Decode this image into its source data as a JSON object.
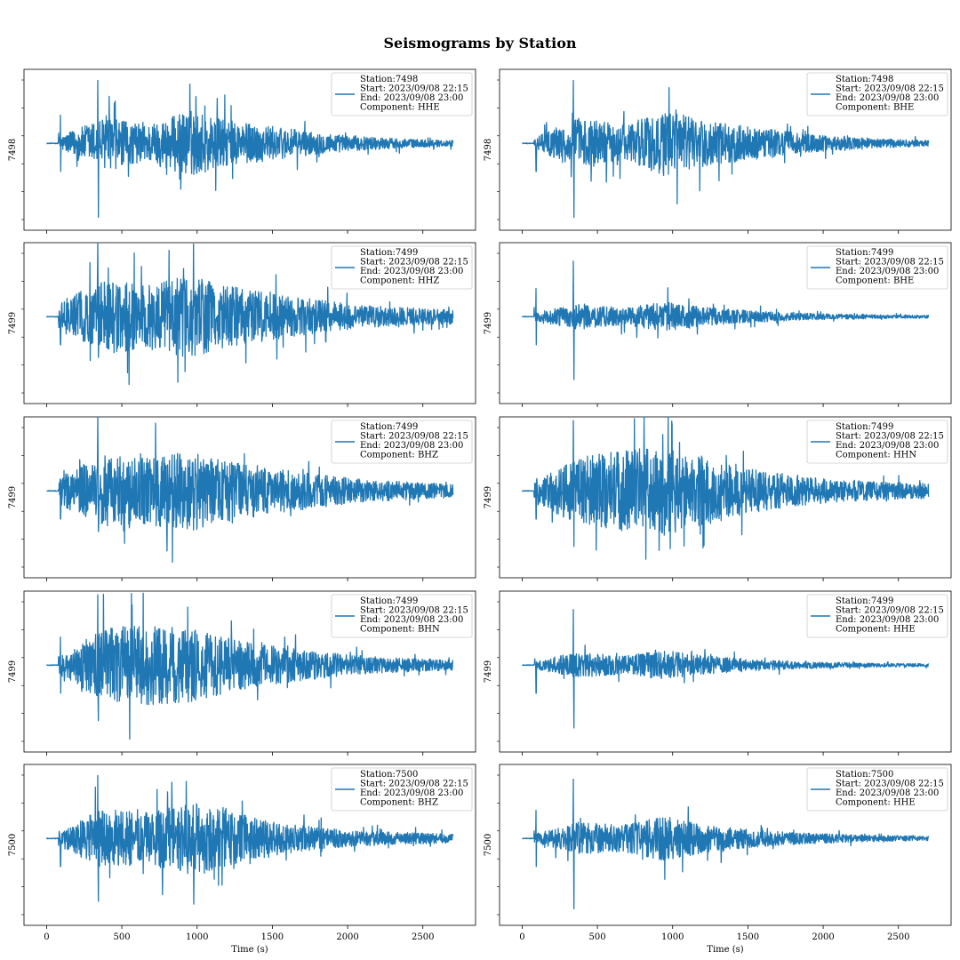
{
  "figure_title": "Seismograms by Station",
  "colors": {
    "line": "#1f77b4",
    "axes": "#000000",
    "legend_border": "#cccccc",
    "background": "#ffffff"
  },
  "chart_data": [
    {
      "type": "line",
      "ylabel": "7498",
      "xlabel": "",
      "xlim": [
        -150,
        2850
      ],
      "xticks": [
        0,
        500,
        1000,
        1500,
        2000,
        2500
      ],
      "show_xtick_labels": false,
      "legend_placement": "top-right",
      "legend": [
        "Station:7498",
        "Start: 2023/09/08 22:15",
        "End: 2023/09/08 23:00",
        "Component: HHE"
      ],
      "series": [
        {
          "name": "Station:7498 HHE",
          "onset": 80,
          "p_arrival": 93,
          "s_arrival": 340,
          "pre_level": 0.0,
          "envelope": [
            0.08,
            0.35,
            0.25,
            0.45,
            0.3,
            0.22,
            0.14,
            0.09,
            0.06,
            0.04
          ],
          "spike_up": 0.85,
          "spike_down": 1.0,
          "tail_end": 2700
        }
      ]
    },
    {
      "type": "line",
      "ylabel": "7498",
      "xlabel": "",
      "xlim": [
        -150,
        2850
      ],
      "xticks": [
        0,
        500,
        1000,
        1500,
        2000,
        2500
      ],
      "show_xtick_labels": false,
      "legend_placement": "top-right",
      "legend": [
        "Station:7498",
        "Start: 2023/09/08 22:15",
        "End: 2023/09/08 23:00",
        "Component: BHE"
      ],
      "series": [
        {
          "name": "Station:7498 BHE",
          "onset": 80,
          "p_arrival": 93,
          "s_arrival": 340,
          "pre_level": 0.0,
          "envelope": [
            0.08,
            0.35,
            0.25,
            0.45,
            0.3,
            0.22,
            0.14,
            0.09,
            0.06,
            0.04
          ],
          "spike_up": 0.85,
          "spike_down": 1.0,
          "tail_end": 2700
        }
      ]
    },
    {
      "type": "line",
      "ylabel": "7499",
      "xlabel": "",
      "xlim": [
        -150,
        2850
      ],
      "xticks": [
        0,
        500,
        1000,
        1500,
        2000,
        2500
      ],
      "show_xtick_labels": false,
      "legend_placement": "top-right",
      "legend": [
        "Station:7499",
        "Start: 2023/09/08 22:15",
        "End: 2023/09/08 23:00",
        "Component: HHZ"
      ],
      "series": [
        {
          "name": "Station:7499 HHZ",
          "onset": 80,
          "p_arrival": 93,
          "s_arrival": 340,
          "pre_level": 0.0,
          "envelope": [
            0.18,
            0.5,
            0.45,
            0.55,
            0.4,
            0.3,
            0.22,
            0.15,
            0.12,
            0.09
          ],
          "spike_up": 1.0,
          "spike_down": 0.55,
          "tail_end": 2700
        }
      ]
    },
    {
      "type": "line",
      "ylabel": "7499",
      "xlabel": "",
      "xlim": [
        -150,
        2850
      ],
      "xticks": [
        0,
        500,
        1000,
        1500,
        2000,
        2500
      ],
      "show_xtick_labels": false,
      "legend_placement": "top-right",
      "legend": [
        "Station:7499",
        "Start: 2023/09/08 22:15",
        "End: 2023/09/08 23:00",
        "Component: BHE"
      ],
      "series": [
        {
          "name": "Station:7499 BHE",
          "onset": 80,
          "p_arrival": 93,
          "s_arrival": 340,
          "pre_level": 0.0,
          "envelope": [
            0.05,
            0.18,
            0.12,
            0.2,
            0.12,
            0.08,
            0.05,
            0.035,
            0.025,
            0.02
          ],
          "spike_up": 0.75,
          "spike_down": 0.85,
          "tail_end": 2700
        }
      ]
    },
    {
      "type": "line",
      "ylabel": "7499",
      "xlabel": "",
      "xlim": [
        -150,
        2850
      ],
      "xticks": [
        0,
        500,
        1000,
        1500,
        2000,
        2500
      ],
      "show_xtick_labels": false,
      "legend_placement": "top-right",
      "legend": [
        "Station:7499",
        "Start: 2023/09/08 22:15",
        "End: 2023/09/08 23:00",
        "Component: BHZ"
      ],
      "series": [
        {
          "name": "Station:7499 BHZ",
          "onset": 80,
          "p_arrival": 93,
          "s_arrival": 340,
          "pre_level": 0.0,
          "envelope": [
            0.18,
            0.5,
            0.45,
            0.55,
            0.4,
            0.3,
            0.22,
            0.15,
            0.12,
            0.09
          ],
          "spike_up": 1.0,
          "spike_down": 0.55,
          "tail_end": 2700
        }
      ]
    },
    {
      "type": "line",
      "ylabel": "7499",
      "xlabel": "",
      "xlim": [
        -150,
        2850
      ],
      "xticks": [
        0,
        500,
        1000,
        1500,
        2000,
        2500
      ],
      "show_xtick_labels": false,
      "legend_placement": "top-right",
      "legend": [
        "Station:7499",
        "Start: 2023/09/08 22:15",
        "End: 2023/09/08 23:00",
        "Component: HHN"
      ],
      "series": [
        {
          "name": "Station:7499 HHN",
          "onset": 80,
          "p_arrival": 93,
          "s_arrival": 340,
          "pre_level": 0.0,
          "envelope": [
            0.15,
            0.45,
            0.55,
            0.6,
            0.45,
            0.3,
            0.2,
            0.15,
            0.12,
            0.1
          ],
          "spike_up": 0.95,
          "spike_down": 0.75,
          "tail_end": 2700
        }
      ]
    },
    {
      "type": "line",
      "ylabel": "7499",
      "xlabel": "",
      "xlim": [
        -150,
        2850
      ],
      "xticks": [
        0,
        500,
        1000,
        1500,
        2000,
        2500
      ],
      "show_xtick_labels": false,
      "legend_placement": "top-right",
      "legend": [
        "Station:7499",
        "Start: 2023/09/08 22:15",
        "End: 2023/09/08 23:00",
        "Component: BHN"
      ],
      "series": [
        {
          "name": "Station:7499 BHN",
          "onset": 80,
          "p_arrival": 93,
          "s_arrival": 340,
          "pre_level": 0.0,
          "envelope": [
            0.12,
            0.5,
            0.55,
            0.5,
            0.35,
            0.25,
            0.18,
            0.12,
            0.09,
            0.07
          ],
          "spike_up": 0.95,
          "spike_down": 0.75,
          "tail_end": 2700
        }
      ]
    },
    {
      "type": "line",
      "ylabel": "7499",
      "xlabel": "",
      "xlim": [
        -150,
        2850
      ],
      "xticks": [
        0,
        500,
        1000,
        1500,
        2000,
        2500
      ],
      "show_xtick_labels": false,
      "legend_placement": "top-right",
      "legend": [
        "Station:7499",
        "Start: 2023/09/08 22:15",
        "End: 2023/09/08 23:00",
        "Component: HHE"
      ],
      "series": [
        {
          "name": "Station:7499 HHE",
          "onset": 80,
          "p_arrival": 93,
          "s_arrival": 340,
          "pre_level": 0.0,
          "envelope": [
            0.05,
            0.18,
            0.12,
            0.2,
            0.12,
            0.08,
            0.05,
            0.035,
            0.025,
            0.02
          ],
          "spike_up": 0.75,
          "spike_down": 0.85,
          "tail_end": 2700
        }
      ]
    },
    {
      "type": "line",
      "ylabel": "7500",
      "xlabel": "Time (s)",
      "xlim": [
        -150,
        2850
      ],
      "xticks": [
        0,
        500,
        1000,
        1500,
        2000,
        2500
      ],
      "show_xtick_labels": true,
      "legend_placement": "top-right",
      "legend": [
        "Station:7500",
        "Start: 2023/09/08 22:15",
        "End: 2023/09/08 23:00",
        "Component: BHZ"
      ],
      "series": [
        {
          "name": "Station:7500 BHZ",
          "onset": 80,
          "p_arrival": 93,
          "s_arrival": 340,
          "pre_level": 0.0,
          "envelope": [
            0.1,
            0.4,
            0.35,
            0.5,
            0.35,
            0.22,
            0.14,
            0.1,
            0.08,
            0.06
          ],
          "spike_up": 0.85,
          "spike_down": 0.85,
          "tail_end": 2700
        }
      ]
    },
    {
      "type": "line",
      "ylabel": "7500",
      "xlabel": "Time (s)",
      "xlim": [
        -150,
        2850
      ],
      "xticks": [
        0,
        500,
        1000,
        1500,
        2000,
        2500
      ],
      "show_xtick_labels": true,
      "legend_placement": "top-right",
      "legend": [
        "Station:7500",
        "Start: 2023/09/08 22:15",
        "End: 2023/09/08 23:00",
        "Component: HHE"
      ],
      "series": [
        {
          "name": "Station:7500 HHE",
          "onset": 80,
          "p_arrival": 93,
          "s_arrival": 340,
          "pre_level": 0.0,
          "envelope": [
            0.06,
            0.22,
            0.18,
            0.3,
            0.18,
            0.12,
            0.08,
            0.055,
            0.04,
            0.03
          ],
          "spike_up": 0.8,
          "spike_down": 0.95,
          "tail_end": 2700
        }
      ]
    }
  ]
}
